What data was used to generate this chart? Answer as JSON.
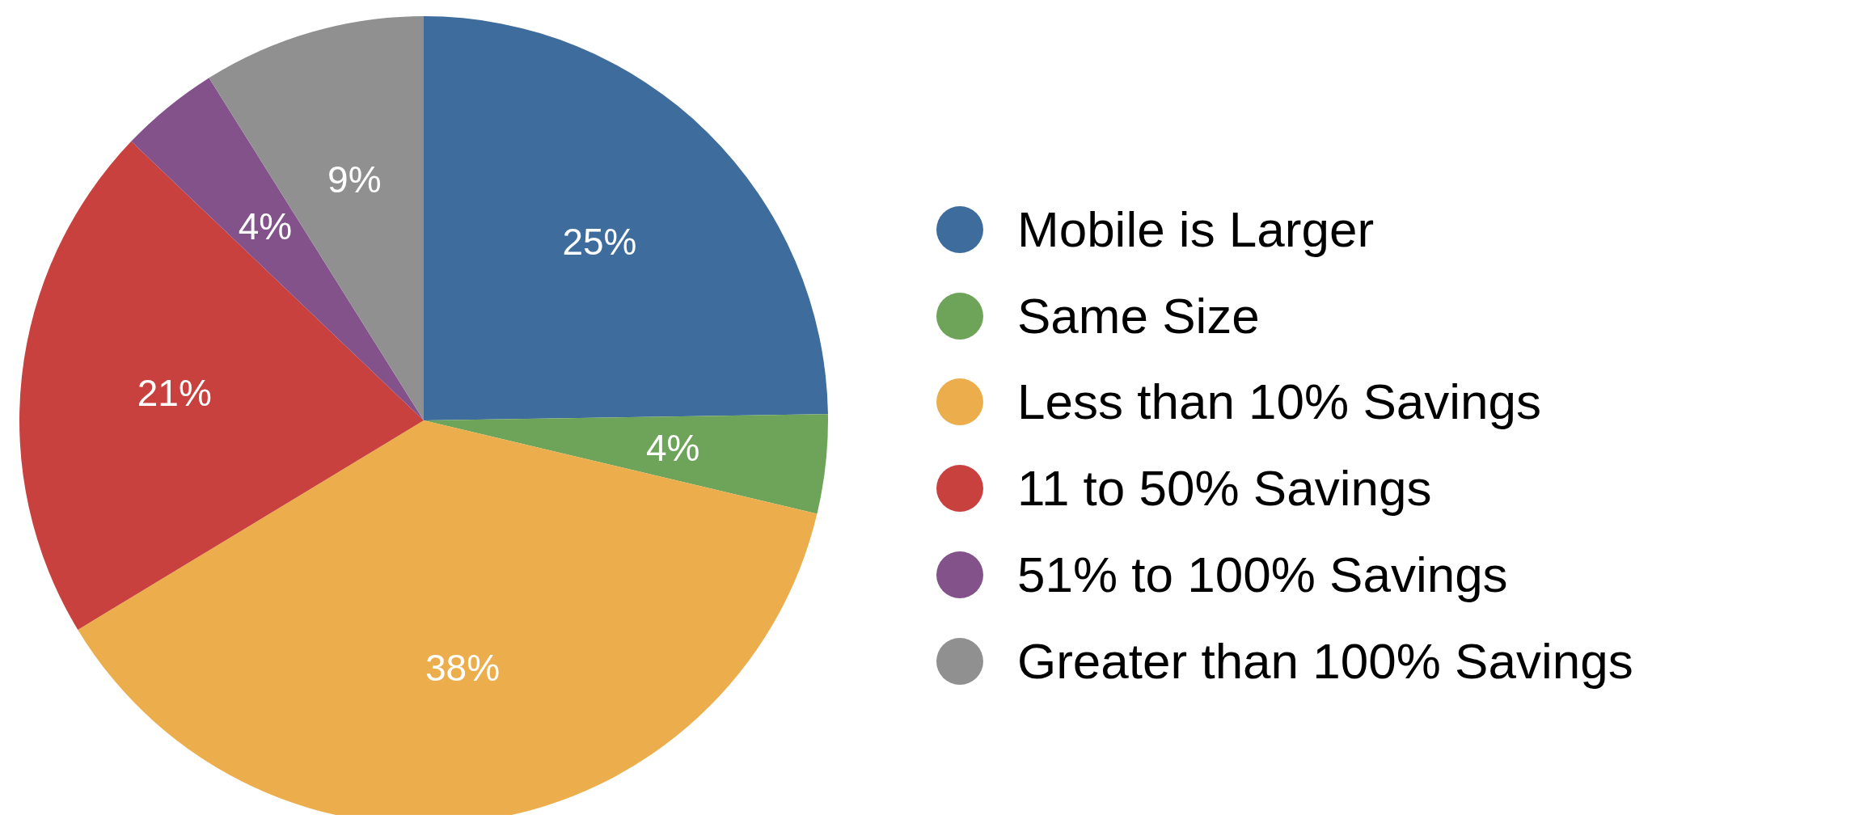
{
  "chart_data": {
    "type": "pie",
    "categories": [
      "Mobile is Larger",
      "Same Size",
      "Less than 10% Savings",
      "11 to 50% Savings",
      "51% to 100% Savings",
      "Greater than 100% Savings"
    ],
    "values": [
      25,
      4,
      38,
      21,
      4,
      9
    ],
    "colors": [
      "#3d6c9d",
      "#6da45a",
      "#ecae4c",
      "#c8413e",
      "#83528b",
      "#8f908f"
    ],
    "value_labels": [
      "25%",
      "4%",
      "38%",
      "21%",
      "4%",
      "9%"
    ],
    "legend": "right"
  }
}
